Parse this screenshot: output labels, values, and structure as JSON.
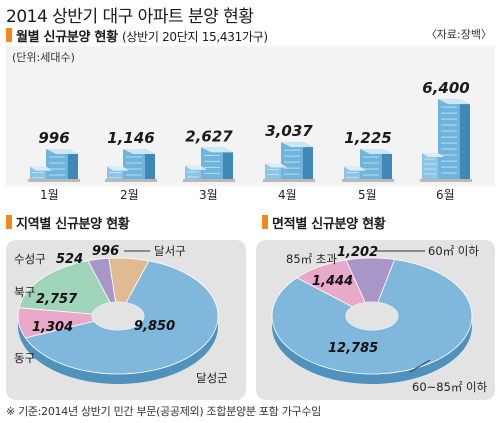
{
  "title": "2014 상반기 대구 아파트 분양 현황",
  "source": "〈자료:장백〉",
  "unit": "(단위:세대수)",
  "footnote": "※ 기준:2014년 상반기 민간 부문(공공제외) 조합분양분 포함 가구수임",
  "colors": {
    "accent": "#f08a1c",
    "building": "#5aa9d6",
    "panel": "#e3e3e3"
  },
  "chart_data": [
    {
      "type": "bar",
      "title": "월별 신규분양 현황",
      "subtitle": "(상반기 20단지 15,431가구)",
      "categories": [
        "1월",
        "2월",
        "3월",
        "4월",
        "5월",
        "6월"
      ],
      "values": [
        996,
        1146,
        2627,
        3037,
        1225,
        6400
      ],
      "value_labels": [
        "996",
        "1,146",
        "2,627",
        "3,037",
        "1,225",
        "6,400"
      ]
    },
    {
      "type": "pie",
      "title": "지역별 신규분양 현황",
      "slices": [
        {
          "name": "달성군",
          "value": 9850,
          "label": "9,850",
          "color": "#7fb8dc"
        },
        {
          "name": "동구",
          "value": 1304,
          "label": "1,304",
          "color": "#e9a9c9"
        },
        {
          "name": "북구",
          "value": 2757,
          "label": "2,757",
          "color": "#9fd4b8"
        },
        {
          "name": "수성구",
          "value": 524,
          "label": "524",
          "color": "#a996c8"
        },
        {
          "name": "달서구",
          "value": 996,
          "label": "996",
          "color": "#e0bb92"
        }
      ]
    },
    {
      "type": "pie",
      "title": "면적별 신규분양 현황",
      "slices": [
        {
          "name": "60~85㎡ 이하",
          "value": 12785,
          "label": "12,785",
          "color": "#7fb8dc"
        },
        {
          "name": "85㎡ 초과",
          "value": 1444,
          "label": "1,444",
          "color": "#e9a9c9"
        },
        {
          "name": "60㎡ 이하",
          "value": 1202,
          "label": "1,202",
          "color": "#a996c8"
        }
      ]
    }
  ]
}
